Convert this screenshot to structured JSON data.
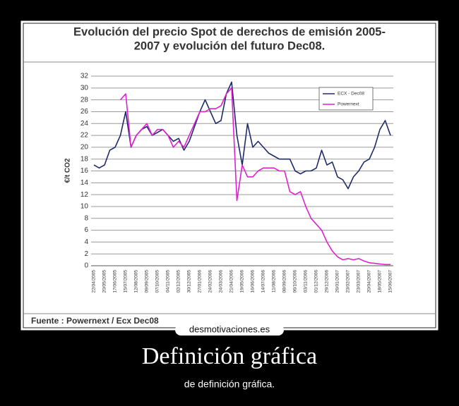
{
  "chart_data": {
    "type": "line",
    "title": [
      "Evolución del precio Spot  de derechos de emisión 2005-",
      "2007 y evolución del futuro Dec08."
    ],
    "y_label": "€/t CO2",
    "source": "Fuente : Powernext / Ecx Dec08",
    "x": [
      "22/04/2005",
      null,
      "20/05/2005",
      null,
      "17/06/2005",
      null,
      "15/07/2005",
      null,
      "12/08/2005",
      null,
      "09/09/2005",
      null,
      "07/10/2005",
      null,
      "04/11/2005",
      null,
      "02/12/2005",
      null,
      "30/12/2005",
      null,
      "27/01/2006",
      null,
      "24/02/2006",
      null,
      "24/03/2006",
      null,
      "21/04/2006",
      null,
      "19/05/2006",
      null,
      "16/06/2006",
      null,
      "14/07/2006",
      null,
      "11/08/2006",
      null,
      "08/09/2006",
      null,
      "06/10/2006",
      null,
      "03/11/2006",
      null,
      "01/12/2006",
      null,
      "29/12/2006",
      null,
      "26/01/2007",
      null,
      "23/02/2007",
      null,
      "23/03/2007",
      null,
      "20/04/2007",
      null,
      "18/05/2007",
      null,
      "15/06/2007"
    ],
    "series": [
      {
        "name": "ECX - Dec08",
        "color": "#1f2a6b",
        "values": [
          17,
          16.5,
          17,
          19.5,
          20,
          22,
          26,
          20,
          22,
          23,
          23.5,
          22,
          22.5,
          23,
          22,
          21,
          21.5,
          19.5,
          21,
          23.5,
          26,
          28,
          26,
          24,
          24.5,
          29,
          31,
          22,
          17,
          24,
          20,
          21,
          20,
          19,
          18.5,
          18,
          18,
          18,
          16,
          15.5,
          16,
          16,
          16.5,
          19.5,
          17,
          17.5,
          15,
          14.5,
          13,
          15,
          16,
          17.5,
          18,
          20,
          23,
          24.5,
          22
        ]
      },
      {
        "name": "Powernext",
        "color": "#e020d0",
        "values": [
          null,
          null,
          null,
          null,
          null,
          28,
          29,
          20,
          22,
          23,
          24,
          22,
          23,
          23,
          22,
          20,
          21,
          20,
          22,
          24,
          26,
          26,
          26.5,
          26.5,
          27,
          29,
          30,
          11,
          17,
          15,
          15,
          16,
          16.5,
          16.5,
          16.5,
          16,
          16,
          12.5,
          12,
          12.5,
          10,
          8,
          7,
          6,
          4,
          2.5,
          1.5,
          1,
          1.2,
          1,
          1.2,
          0.8,
          0.5,
          0.4,
          0.3,
          0.2,
          0.2
        ]
      }
    ],
    "ylim": [
      0,
      32
    ],
    "yticks": [
      0,
      2,
      4,
      6,
      8,
      10,
      12,
      14,
      16,
      18,
      20,
      22,
      24,
      26,
      28,
      30,
      32
    ],
    "grid": true,
    "legend": "top-right"
  },
  "poster": {
    "watermark": "desmotivaciones.es",
    "title": "Definición gráfica",
    "subtitle": "de definición gráfica."
  }
}
